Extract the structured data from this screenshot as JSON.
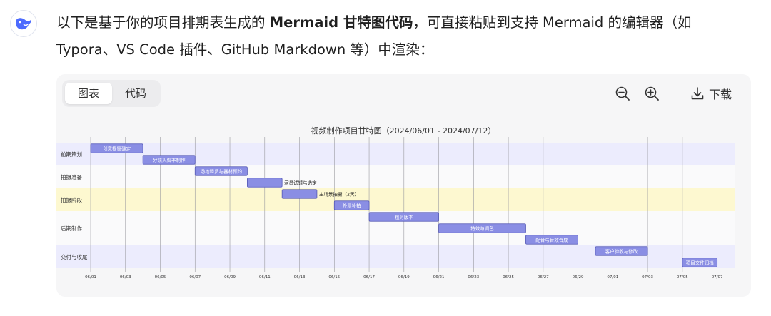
{
  "message": {
    "part1": "以下是基于你的项目排期表生成的 ",
    "bold": "Mermaid 甘特图代码",
    "part2": "，可直接粘贴到支持 Mermaid 的编辑器（如 Typora、VS Code 插件、GitHub Markdown 等）中渲染："
  },
  "toolbar": {
    "tab_chart": "图表",
    "tab_code": "代码",
    "download_label": "下载"
  },
  "icons": {
    "avatar": "deepseek-whale-icon",
    "zoom_out": "zoom-out-icon",
    "zoom_in": "zoom-in-icon",
    "download": "download-icon"
  },
  "colors": {
    "task_fill": "#8a8ee4",
    "task_stroke": "#5458b5",
    "section_a": "#ececfd",
    "section_b": "#fdf8d0",
    "section_c": "#fafafb"
  },
  "chart_data": {
    "type": "gantt",
    "title": "视频制作项目甘特图（2024/06/01 - 2024/07/12）",
    "x_range": [
      "2024-06-01",
      "2024-07-08"
    ],
    "ticks": [
      "06/01",
      "06/03",
      "06/05",
      "06/07",
      "06/09",
      "06/11",
      "06/13",
      "06/15",
      "06/17",
      "06/19",
      "06/21",
      "06/23",
      "06/25",
      "06/27",
      "06/29",
      "07/01",
      "07/03",
      "07/05",
      "07/07"
    ],
    "sections": [
      {
        "name": "前期策划",
        "tasks": [
          {
            "name": "创意提案确定",
            "start": "2024-06-01",
            "end": "2024-06-04"
          },
          {
            "name": "分镜头脚本制作",
            "start": "2024-06-04",
            "end": "2024-06-07"
          }
        ]
      },
      {
        "name": "拍摄准备",
        "tasks": [
          {
            "name": "场地租赁与器材预约",
            "start": "2024-06-07",
            "end": "2024-06-10"
          },
          {
            "name": "演员试镜与选定",
            "start": "2024-06-10",
            "end": "2024-06-12"
          }
        ]
      },
      {
        "name": "拍摄阶段",
        "tasks": [
          {
            "name": "主场景拍摄（2天）",
            "start": "2024-06-12",
            "end": "2024-06-14"
          },
          {
            "name": "外景补拍",
            "start": "2024-06-15",
            "end": "2024-06-17"
          }
        ]
      },
      {
        "name": "后期制作",
        "tasks": [
          {
            "name": "粗剪版本",
            "start": "2024-06-17",
            "end": "2024-06-21"
          },
          {
            "name": "特效与调色",
            "start": "2024-06-21",
            "end": "2024-06-26"
          },
          {
            "name": "配音与音效合成",
            "start": "2024-06-26",
            "end": "2024-06-29"
          }
        ]
      },
      {
        "name": "交付与收尾",
        "tasks": [
          {
            "name": "客户验收与修改",
            "start": "2024-06-30",
            "end": "2024-07-03"
          },
          {
            "name": "项目文件归档",
            "start": "2024-07-05",
            "end": "2024-07-07"
          }
        ]
      }
    ]
  }
}
